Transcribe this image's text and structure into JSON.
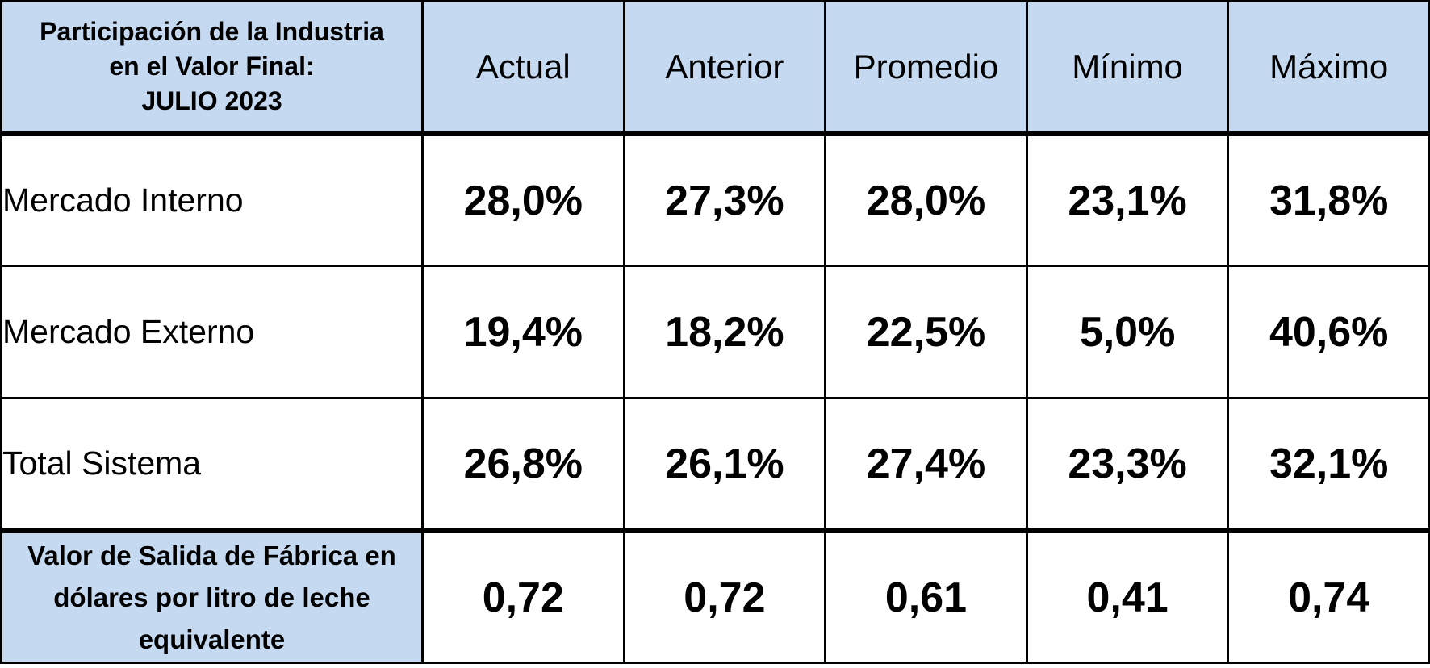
{
  "header": {
    "corner_lines": [
      "Participación de la Industria",
      "en el Valor Final:",
      "JULIO 2023"
    ],
    "columns": [
      "Actual",
      "Anterior",
      "Promedio",
      "Mínimo",
      "Máximo"
    ]
  },
  "rows": [
    {
      "label": "Mercado Interno",
      "values": [
        "28,0%",
        "27,3%",
        "28,0%",
        "23,1%",
        "31,8%"
      ]
    },
    {
      "label": "Mercado Externo",
      "values": [
        "19,4%",
        "18,2%",
        "22,5%",
        "5,0%",
        "40,6%"
      ]
    },
    {
      "label": "Total Sistema",
      "values": [
        "26,8%",
        "26,1%",
        "27,4%",
        "23,3%",
        "32,1%"
      ]
    }
  ],
  "footer": {
    "label_lines": [
      "Valor de Salida de Fábrica en",
      "dólares por litro de leche",
      "equivalente"
    ],
    "values": [
      "0,72",
      "0,72",
      "0,61",
      "0,41",
      "0,74"
    ]
  },
  "colors": {
    "header_fill": "#c5d9f1",
    "border": "#000000"
  }
}
